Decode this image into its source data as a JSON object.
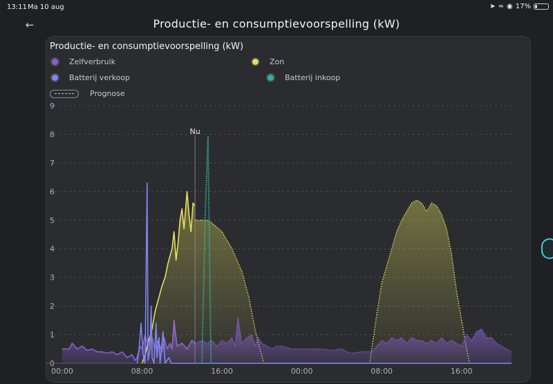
{
  "status": {
    "time": "13:11",
    "date": "Ma 10 aug",
    "battery": "17%",
    "battery_level": 0.17
  },
  "header": {
    "title": "Productie- en consumptievoorspelling (kW)"
  },
  "card": {
    "title": "Productie- en consumptievoorspelling (kW)",
    "legend": [
      {
        "label": "Zelfverbruik",
        "color": "#8a5fd0"
      },
      {
        "label": "Zon",
        "color": "#e6e05a"
      },
      {
        "label": "Batterij verkoop",
        "color": "#7f86f0"
      },
      {
        "label": "Batterij inkoop",
        "color": "#2fb39a"
      },
      {
        "label": "Prognose",
        "style": "dashed"
      }
    ]
  },
  "chart_data": {
    "type": "area",
    "title": "",
    "ylim": [
      0,
      9
    ],
    "y_ticks": [
      "0",
      "1",
      "2",
      "3",
      "4",
      "5",
      "6",
      "7",
      "8",
      "9"
    ],
    "x_ticks": [
      "00:00",
      "08:00",
      "16:00",
      "00:00",
      "08:00",
      "16:00"
    ],
    "x_unit": "hours",
    "xlim": [
      0,
      45
    ],
    "now_label": "Nu",
    "now_x": 13.3,
    "grid": true,
    "series": [
      {
        "name": "Zelfverbruik",
        "color": "#8a5fd0",
        "points": [
          [
            0,
            0.5
          ],
          [
            0.7,
            0.5
          ],
          [
            1,
            0.7
          ],
          [
            1.5,
            0.5
          ],
          [
            2,
            0.6
          ],
          [
            2.5,
            0.45
          ],
          [
            3,
            0.5
          ],
          [
            3.5,
            0.4
          ],
          [
            4,
            0.4
          ],
          [
            4.5,
            0.35
          ],
          [
            5,
            0.4
          ],
          [
            5.5,
            0.3
          ],
          [
            6,
            0.4
          ],
          [
            6.5,
            0.2
          ],
          [
            7,
            0.3
          ],
          [
            7.3,
            0.1
          ],
          [
            7.5,
            0.2
          ],
          [
            7.8,
            0.6
          ],
          [
            8,
            0.5
          ],
          [
            8.3,
            1.0
          ],
          [
            8.6,
            0.6
          ],
          [
            9,
            0.9
          ],
          [
            9.3,
            0.5
          ],
          [
            9.6,
            0.8
          ],
          [
            10,
            0.4
          ],
          [
            10.2,
            0.9
          ],
          [
            10.5,
            0.5
          ],
          [
            10.8,
            0.7
          ],
          [
            11,
            0.5
          ],
          [
            11.2,
            1.5
          ],
          [
            11.5,
            0.6
          ],
          [
            12,
            0.7
          ],
          [
            12.5,
            0.5
          ],
          [
            13,
            0.8
          ],
          [
            13.3,
            0.7
          ]
        ]
      },
      {
        "name": "Zelfverbruik prognose",
        "color": "#8a5fd0",
        "dashed": true,
        "points": [
          [
            13.3,
            0.7
          ],
          [
            14,
            0.8
          ],
          [
            14.5,
            0.7
          ],
          [
            15,
            0.8
          ],
          [
            15.5,
            0.6
          ],
          [
            16,
            0.8
          ],
          [
            16.5,
            0.7
          ],
          [
            17,
            0.9
          ],
          [
            17.3,
            0.6
          ],
          [
            17.6,
            1.6
          ],
          [
            18,
            0.7
          ],
          [
            18.5,
            0.9
          ],
          [
            19,
            1.0
          ],
          [
            19.3,
            0.6
          ],
          [
            19.6,
            0.9
          ],
          [
            20,
            0.7
          ],
          [
            20.5,
            0.6
          ],
          [
            21,
            0.5
          ],
          [
            21.5,
            0.6
          ],
          [
            22,
            0.6
          ],
          [
            23,
            0.5
          ],
          [
            24,
            0.5
          ],
          [
            25,
            0.5
          ],
          [
            26,
            0.5
          ],
          [
            27,
            0.45
          ],
          [
            28,
            0.5
          ],
          [
            28.5,
            0.4
          ],
          [
            29,
            0.35
          ],
          [
            30,
            0.4
          ],
          [
            31,
            0.4
          ],
          [
            31.5,
            0.6
          ],
          [
            32,
            0.8
          ],
          [
            32.5,
            0.7
          ],
          [
            33,
            0.9
          ],
          [
            33.5,
            0.8
          ],
          [
            34,
            0.9
          ],
          [
            34.5,
            0.7
          ],
          [
            35,
            0.9
          ],
          [
            35.5,
            0.8
          ],
          [
            36,
            0.8
          ],
          [
            36.5,
            0.7
          ],
          [
            37,
            0.8
          ],
          [
            37.5,
            0.7
          ],
          [
            38,
            0.9
          ],
          [
            38.5,
            0.7
          ],
          [
            39,
            0.8
          ],
          [
            39.5,
            0.7
          ],
          [
            40,
            0.6
          ],
          [
            40.5,
            1.0
          ],
          [
            41,
            0.8
          ],
          [
            41.5,
            1.1
          ],
          [
            42,
            1.2
          ],
          [
            42.5,
            0.9
          ],
          [
            43,
            0.9
          ],
          [
            43.5,
            0.7
          ],
          [
            44,
            0.6
          ],
          [
            44.5,
            0.5
          ],
          [
            45,
            0.4
          ]
        ]
      },
      {
        "name": "Zon",
        "color": "#e6e05a",
        "points": [
          [
            8.0,
            0.0
          ],
          [
            8.3,
            0.3
          ],
          [
            8.6,
            0.7
          ],
          [
            9.0,
            1.2
          ],
          [
            9.3,
            1.8
          ],
          [
            9.6,
            2.2
          ],
          [
            10,
            2.7
          ],
          [
            10.3,
            3.0
          ],
          [
            10.6,
            3.5
          ],
          [
            11,
            4.0
          ],
          [
            11.2,
            4.6
          ],
          [
            11.4,
            3.6
          ],
          [
            11.6,
            4.2
          ],
          [
            11.8,
            5.0
          ],
          [
            12,
            5.4
          ],
          [
            12.2,
            4.7
          ],
          [
            12.5,
            6.0
          ],
          [
            12.7,
            5.2
          ],
          [
            12.9,
            4.6
          ],
          [
            13.1,
            5.6
          ],
          [
            13.3,
            5.5
          ]
        ]
      },
      {
        "name": "Zon prognose",
        "color": "#e6e05a",
        "dashed": true,
        "points": [
          [
            13.3,
            5.0
          ],
          [
            14.5,
            5.0
          ],
          [
            15,
            4.9
          ],
          [
            16,
            4.6
          ],
          [
            17,
            4.0
          ],
          [
            18,
            3.2
          ],
          [
            18.7,
            2.3
          ],
          [
            19.3,
            1.2
          ],
          [
            19.8,
            0.5
          ],
          [
            20.2,
            0.0
          ],
          [
            30.8,
            0.0
          ],
          [
            31,
            0.5
          ],
          [
            31.5,
            1.7
          ],
          [
            32,
            2.8
          ],
          [
            32.5,
            3.4
          ],
          [
            33,
            4.0
          ],
          [
            33.5,
            4.6
          ],
          [
            34,
            5.0
          ],
          [
            34.5,
            5.3
          ],
          [
            35,
            5.6
          ],
          [
            35.5,
            5.7
          ],
          [
            36,
            5.6
          ],
          [
            36.5,
            5.3
          ],
          [
            37,
            5.6
          ],
          [
            37.5,
            5.5
          ],
          [
            38,
            5.2
          ],
          [
            38.5,
            4.7
          ],
          [
            39,
            3.8
          ],
          [
            39.5,
            2.5
          ],
          [
            40,
            1.5
          ],
          [
            40.5,
            0.5
          ],
          [
            40.8,
            0.0
          ]
        ]
      },
      {
        "name": "Batterij verkoop",
        "color": "#7f86f0",
        "points": [
          [
            7.5,
            0.0
          ],
          [
            7.7,
            0.5
          ],
          [
            7.9,
            1.4
          ],
          [
            8.1,
            0.3
          ],
          [
            8.3,
            0.0
          ],
          [
            8.5,
            6.3
          ],
          [
            8.6,
            0.1
          ],
          [
            8.8,
            0.5
          ],
          [
            8.9,
            2.0
          ],
          [
            9.0,
            0.2
          ],
          [
            9.2,
            0.0
          ],
          [
            9.4,
            1.4
          ],
          [
            9.5,
            0.2
          ],
          [
            9.7,
            0.9
          ],
          [
            9.8,
            0.0
          ],
          [
            10.1,
            1.1
          ],
          [
            10.3,
            0.0
          ],
          [
            10.7,
            0.2
          ],
          [
            10.9,
            0.0
          ],
          [
            45,
            0.0
          ]
        ]
      },
      {
        "name": "Batterij inkoop",
        "color": "#2fb39a",
        "points": [
          [
            14.0,
            0.0
          ],
          [
            14.3,
            5.0
          ],
          [
            14.6,
            7.9
          ],
          [
            14.9,
            0.0
          ]
        ]
      }
    ]
  }
}
